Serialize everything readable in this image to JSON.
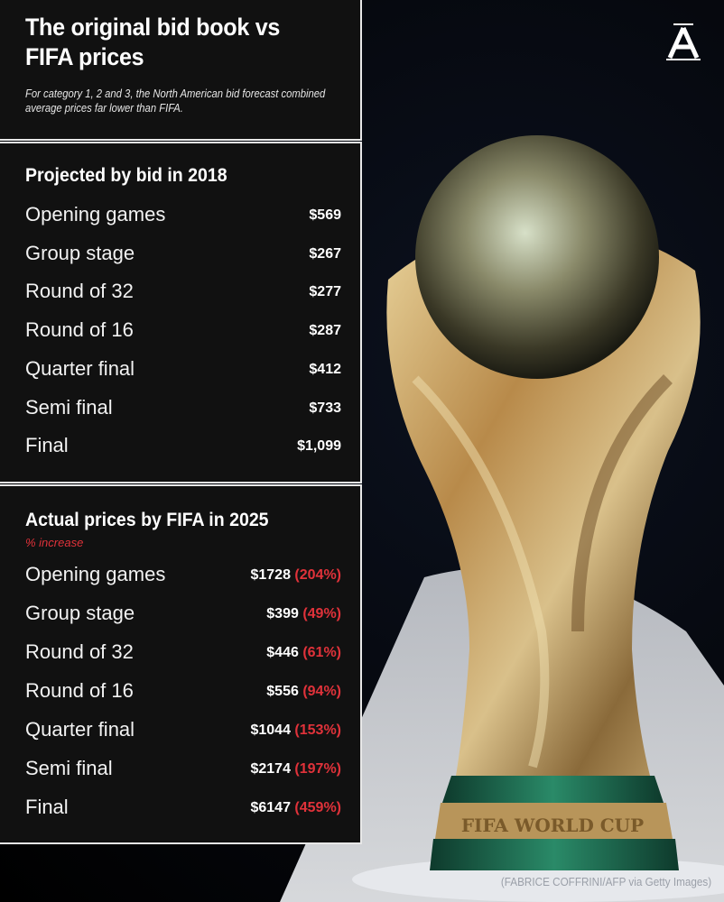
{
  "header": {
    "title": "The original bid book vs FIFA prices",
    "subtitle": "For category 1, 2 and 3, the North American bid forecast combined average prices far lower than FIFA."
  },
  "bid": {
    "title": "Projected by bid in 2018",
    "rows": [
      {
        "stage": "Opening games",
        "price": "$569"
      },
      {
        "stage": "Group stage",
        "price": "$267"
      },
      {
        "stage": "Round of 32",
        "price": "$277"
      },
      {
        "stage": "Round of 16",
        "price": "$287"
      },
      {
        "stage": "Quarter final",
        "price": "$412"
      },
      {
        "stage": "Semi final",
        "price": "$733"
      },
      {
        "stage": "Final",
        "price": "$1,099"
      }
    ]
  },
  "fifa": {
    "title": "Actual prices by FIFA in 2025",
    "subtitle": "% increase",
    "rows": [
      {
        "stage": "Opening games",
        "price": "$1728",
        "increase": "(204%)"
      },
      {
        "stage": "Group stage",
        "price": "$399",
        "increase": "(49%)"
      },
      {
        "stage": "Round of 32",
        "price": "$446",
        "increase": "(61%)"
      },
      {
        "stage": "Round of 16",
        "price": "$556",
        "increase": "(94%)"
      },
      {
        "stage": "Quarter final",
        "price": "$1044",
        "increase": "(153%)"
      },
      {
        "stage": "Semi final",
        "price": "$2174",
        "increase": "(197%)"
      },
      {
        "stage": "Final",
        "price": "$6147",
        "increase": "(459%)"
      }
    ]
  },
  "logo": {
    "letter": "A",
    "icon": "the-athletic-logo"
  },
  "photo": {
    "subject": "fifa-world-cup-trophy",
    "base_text": "FIFA WORLD CUP",
    "credit": "(FABRICE COFFRINI/AFP via Getty Images)"
  },
  "colors": {
    "panel": "#111111",
    "border": "#e8e8e8",
    "accent_red": "#e0323a",
    "trophy_gold": "#c9a35a",
    "trophy_green": "#1f6b52"
  }
}
